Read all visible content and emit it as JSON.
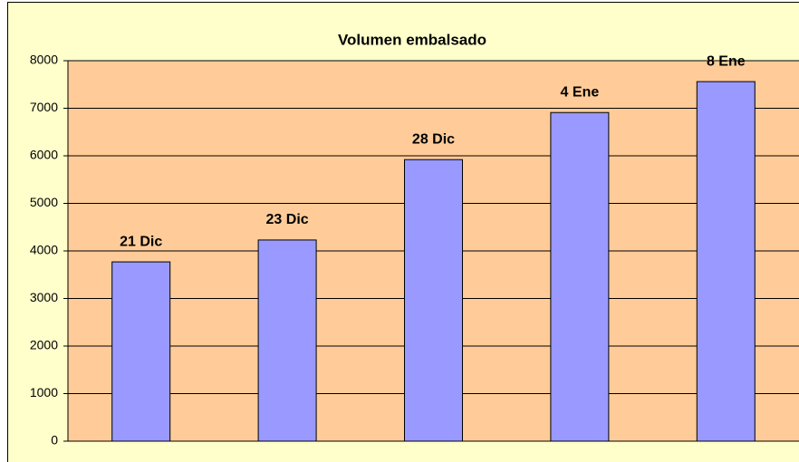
{
  "chart_data": {
    "type": "bar",
    "title": "Volumen embalsado",
    "categories": [
      "21 Dic",
      "23 Dic",
      "28 Dic",
      "4 Ene",
      "8 Ene"
    ],
    "values": [
      3770,
      4230,
      5920,
      6910,
      7560
    ],
    "color": "#9999ff",
    "ylim": [
      0,
      8000
    ],
    "yticks": [
      0,
      1000,
      2000,
      3000,
      4000,
      5000,
      6000,
      7000,
      8000
    ],
    "grid": true
  }
}
